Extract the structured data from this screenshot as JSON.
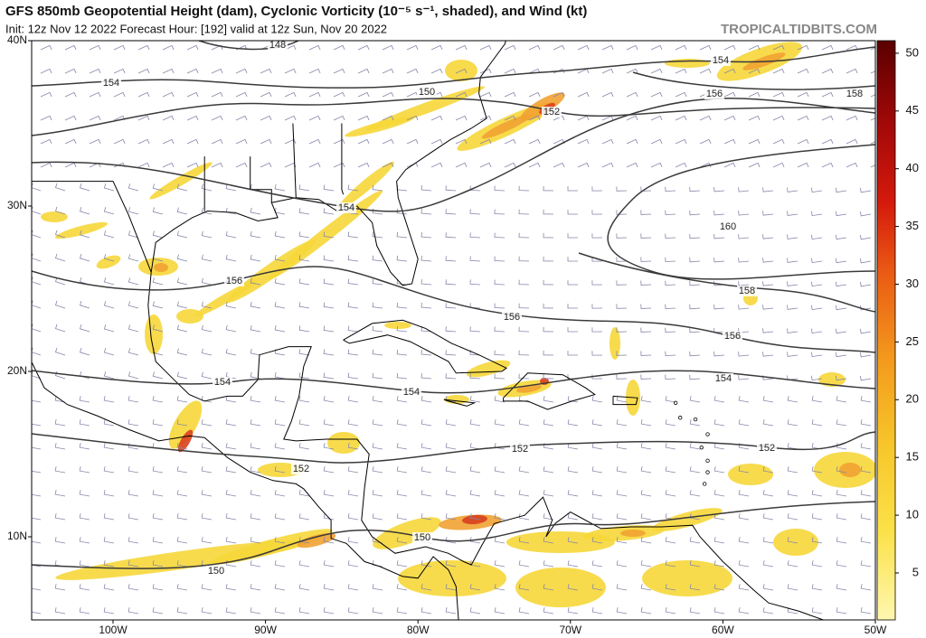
{
  "header": {
    "title": "GFS 850mb Geopotential Height (dam), Cyclonic Vorticity (10⁻⁵ s⁻¹, shaded), and Wind (kt)",
    "subtitle": "Init: 12z Nov 12 2022   Forecast Hour: [192]   valid at 12z Sun, Nov 20 2022",
    "watermark": "TROPICALTIDBITS.COM"
  },
  "map": {
    "lat_labels": [
      "40N",
      "30N",
      "20N",
      "10N"
    ],
    "lon_labels": [
      "100W",
      "90W",
      "80W",
      "70W",
      "60W",
      "50W"
    ],
    "contour_labels": [
      "148",
      "154",
      "150",
      "152",
      "154",
      "156",
      "158",
      "154",
      "160",
      "156",
      "158",
      "156",
      "156",
      "154",
      "154",
      "154",
      "152",
      "152",
      "152",
      "150",
      "150"
    ]
  },
  "colorbar": {
    "ticks": [
      5,
      10,
      15,
      20,
      25,
      30,
      35,
      40,
      45,
      50
    ]
  }
}
